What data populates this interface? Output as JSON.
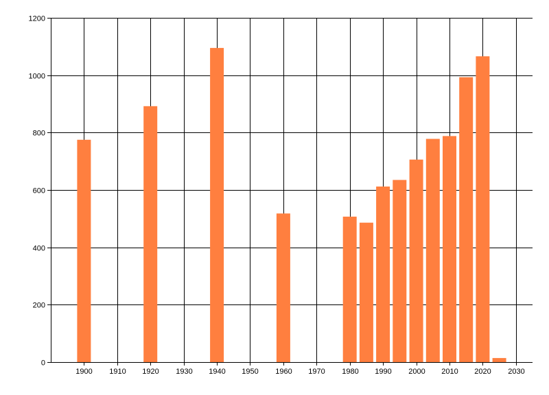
{
  "chart_data": {
    "type": "bar",
    "title": "",
    "xlabel": "",
    "ylabel": "",
    "xlim": [
      1890,
      2035
    ],
    "ylim": [
      0,
      1200
    ],
    "x_ticks": [
      1900,
      1910,
      1920,
      1930,
      1940,
      1950,
      1960,
      1970,
      1980,
      1990,
      2000,
      2010,
      2020,
      2030
    ],
    "y_ticks": [
      0,
      200,
      400,
      600,
      800,
      1000,
      1200
    ],
    "grid": true,
    "legend": "none",
    "bar_color": "#FF7F3F",
    "series": [
      {
        "x": [
          1900,
          1920,
          1940,
          1960,
          1980,
          1985,
          1990,
          1995,
          2000,
          2005,
          2010,
          2015,
          2020,
          2025
        ],
        "values": [
          775,
          892,
          1095,
          518,
          507,
          486,
          612,
          635,
          706,
          778,
          788,
          993,
          1066,
          14
        ]
      }
    ]
  }
}
